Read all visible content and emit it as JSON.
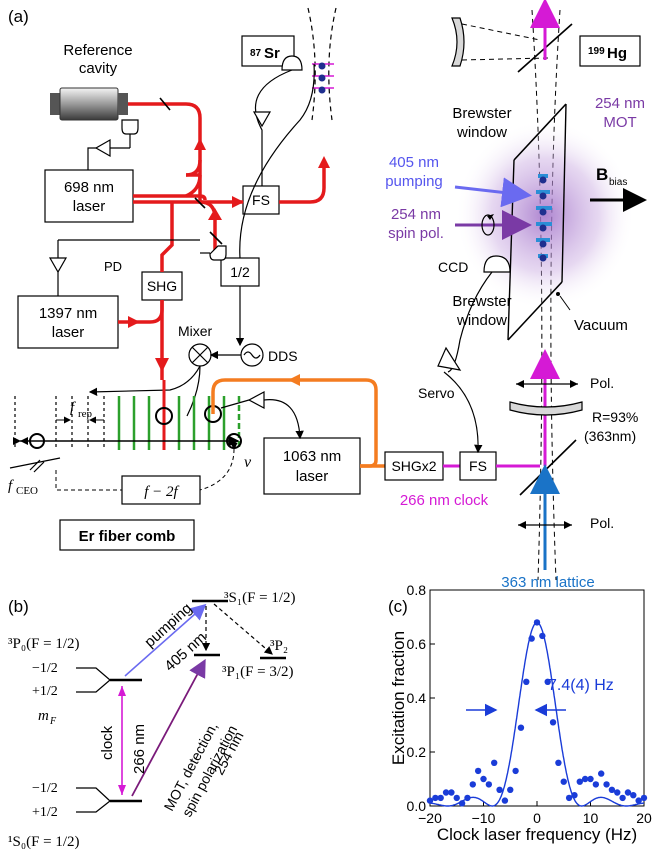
{
  "panel_a": {
    "label": "(a)",
    "sr_badge": "87Sr",
    "sr_badge_sup": "87",
    "sr_badge_main": "Sr",
    "hg_badge_sup": "199",
    "hg_badge_main": "Hg",
    "reference_cavity_line1": "Reference",
    "reference_cavity_line2": "cavity",
    "laser698_line1": "698 nm",
    "laser698_line2": "laser",
    "laser1397_line1": "1397 nm",
    "laser1397_line2": "laser",
    "laser1063_line1": "1063 nm",
    "laser1063_line2": "laser",
    "fs": "FS",
    "fs2": "FS",
    "shg": "SHG",
    "shgx2": "SHGx2",
    "half": "1/2",
    "pd": "PD",
    "mixer": "Mixer",
    "dds": "DDS",
    "frep": "f",
    "frep_sub": "rep",
    "fceo": "f",
    "fceo_sub": "CEO",
    "nu": "ν",
    "f2f": "f − 2f",
    "comb": "Er fiber comb",
    "clock266": "266 nm clock",
    "lattice363": "363 nm lattice",
    "brewster1_line1": "Brewster",
    "brewster1_line2": "window",
    "brewster2_line1": "Brewster",
    "brewster2_line2": "window",
    "mot254_line1": "254 nm",
    "mot254_line2": "MOT",
    "pump405_line1": "405 nm",
    "pump405_line2": "pumping",
    "spin254_line1": "254 nm",
    "spin254_line2": "spin pol.",
    "bbias": "B",
    "bbias_sub": "bias",
    "ccd": "CCD",
    "servo": "Servo",
    "vacuum": "Vacuum",
    "pol1": "Pol.",
    "pol2": "Pol.",
    "mirror_r1": "R=93%",
    "mirror_r2": "(363nm)"
  },
  "panel_b": {
    "label": "(b)",
    "s1": "³S₁(F = 1/2)",
    "p0": "³P₀(F = 1/2)",
    "p2": "³P₂",
    "p1": "³P₁(F = 3/2)",
    "s0": "¹S₀(F = 1/2)",
    "mf_m_top": "−1/2",
    "mf_p_top": "+1/2",
    "mf": "m",
    "mf_sub": "F",
    "mf_m_bot": "−1/2",
    "mf_p_bot": "+1/2",
    "pumping": "pumping",
    "nm405": "405 nm",
    "clock": "clock",
    "nm266": "266 nm",
    "mot_line1": "MOT, detection,",
    "mot_line2": "spin polarization",
    "mot_line3": "254 nm"
  },
  "panel_c": {
    "label": "(c)",
    "linewidth": "7.4(4) Hz"
  },
  "colors": {
    "red": "#e41a1c",
    "orange": "#f47c20",
    "magenta": "#d51ad5",
    "green": "#2ca02c",
    "blue": "#1f4fd8",
    "violet": "#6a3ab5",
    "lattice": "#1a73c7"
  },
  "chart_data": {
    "type": "scatter",
    "xlabel": "Clock laser frequency (Hz)",
    "ylabel": "Excitation fraction",
    "xlim": [
      -20,
      20
    ],
    "ylim": [
      0,
      0.8
    ],
    "xticks": [
      -20,
      -10,
      0,
      10,
      20
    ],
    "yticks": [
      0.0,
      0.2,
      0.4,
      0.6,
      0.8
    ],
    "ytick_labels": [
      "0.0",
      "0.2",
      "0.4",
      "0.6",
      "0.8"
    ],
    "points": [
      [
        -20,
        0.02
      ],
      [
        -19,
        0.03
      ],
      [
        -18,
        0.03
      ],
      [
        -17,
        0.05
      ],
      [
        -16,
        0.05
      ],
      [
        -15,
        0.03
      ],
      [
        -14,
        0.01
      ],
      [
        -13,
        0.03
      ],
      [
        -12,
        0.08
      ],
      [
        -11,
        0.13
      ],
      [
        -10,
        0.1
      ],
      [
        -9,
        0.08
      ],
      [
        -8,
        0.16
      ],
      [
        -7,
        0.06
      ],
      [
        -6,
        0.02
      ],
      [
        -5,
        0.06
      ],
      [
        -4,
        0.13
      ],
      [
        -3,
        0.29
      ],
      [
        -2,
        0.46
      ],
      [
        -1,
        0.62
      ],
      [
        0,
        0.68
      ],
      [
        1,
        0.63
      ],
      [
        2,
        0.46
      ],
      [
        3,
        0.31
      ],
      [
        4,
        0.16
      ],
      [
        5,
        0.09
      ],
      [
        6,
        0.03
      ],
      [
        7,
        0.04
      ],
      [
        8,
        0.09
      ],
      [
        9,
        0.1
      ],
      [
        10,
        0.1
      ],
      [
        11,
        0.08
      ],
      [
        12,
        0.12
      ],
      [
        13,
        0.08
      ],
      [
        14,
        0.06
      ],
      [
        15,
        0.05
      ],
      [
        16,
        0.03
      ],
      [
        17,
        0.05
      ],
      [
        18,
        0.04
      ],
      [
        19,
        0.02
      ],
      [
        20,
        0.03
      ]
    ],
    "fit": {
      "form": "sinc2",
      "amplitude": 0.68,
      "center": 0,
      "fwhm": 7.4,
      "offset": 0.0
    }
  }
}
